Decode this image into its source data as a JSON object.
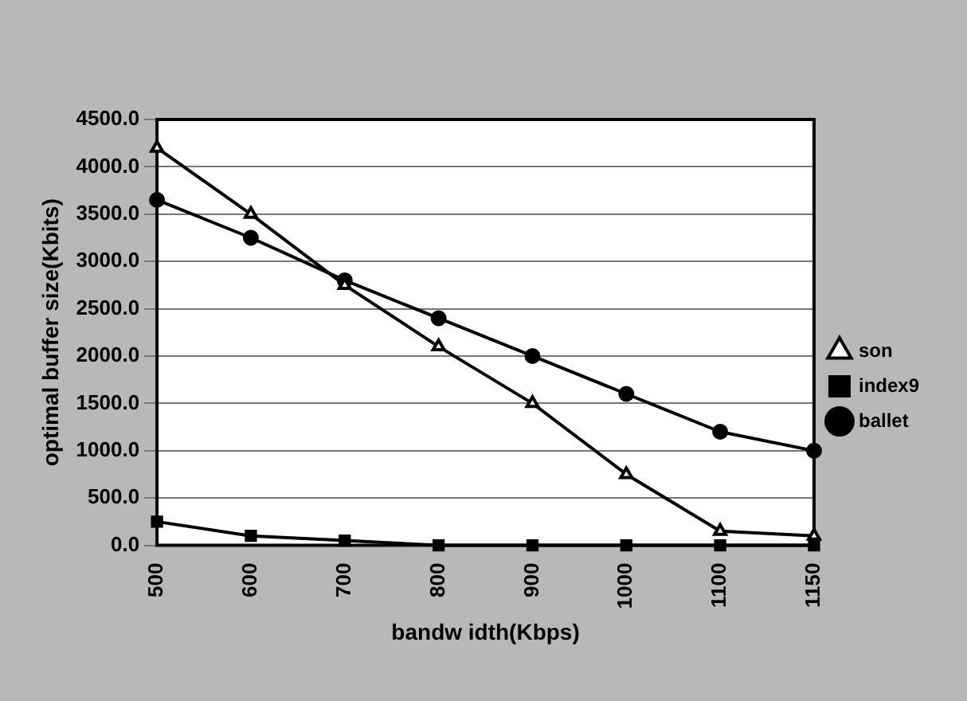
{
  "chart_data": {
    "type": "line",
    "xlabel": "bandw idth(Kbps)",
    "ylabel": "optimal buffer size(Kbits)",
    "categories": [
      "500",
      "600",
      "700",
      "800",
      "900",
      "1000",
      "1100",
      "1150"
    ],
    "series": [
      {
        "name": "ballet",
        "color": "#000000",
        "marker": "circle",
        "values": [
          3650,
          3250,
          2800,
          2400,
          2000,
          1600,
          1200,
          1000
        ]
      },
      {
        "name": "index9",
        "color": "#000000",
        "marker": "square",
        "values": [
          250,
          100,
          50,
          0,
          0,
          0,
          0,
          0
        ]
      },
      {
        "name": "son",
        "color": "#000000",
        "marker": "triangle",
        "values": [
          4200,
          3500,
          2750,
          2100,
          1500,
          750,
          150,
          100
        ]
      }
    ],
    "ylim": [
      0,
      4500
    ],
    "yticks": [
      {
        "value": 0,
        "label": "0.0"
      },
      {
        "value": 500,
        "label": "500.0"
      },
      {
        "value": 1000,
        "label": "1000.0"
      },
      {
        "value": 1500,
        "label": "1500.0"
      },
      {
        "value": 2000,
        "label": "2000.0"
      },
      {
        "value": 2500,
        "label": "2500.0"
      },
      {
        "value": 3000,
        "label": "3000.0"
      },
      {
        "value": 3500,
        "label": "3500.0"
      },
      {
        "value": 4000,
        "label": "4000.0"
      },
      {
        "value": 4500,
        "label": "4500.0"
      }
    ],
    "grid": "y",
    "legend": "right"
  }
}
